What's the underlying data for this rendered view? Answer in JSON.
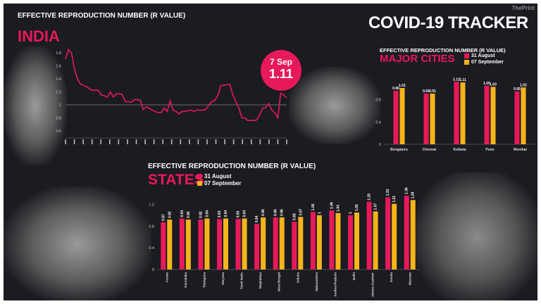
{
  "header": {
    "title": "COVID-19 TRACKER",
    "watermark": "ThePrint"
  },
  "colors": {
    "background": "#1b1b22",
    "series_a": "#e8195a",
    "series_b": "#f5b41a",
    "accent": "#e8195a"
  },
  "india": {
    "subtitle": "EFFECTIVE REPRODUCTION NUMBER (R VALUE)",
    "title": "INDIA",
    "callout_date": "7 Sep",
    "callout_value": "1.11"
  },
  "cities": {
    "subtitle": "EFFECTIVE REPRODUCTION NUMBER (R VALUE)",
    "title": "MAJOR CITIES"
  },
  "states": {
    "subtitle": "EFFECTIVE REPRODUCTION NUMBER (R VALUE)",
    "title": "STATES"
  },
  "images": [
    "health-worker-ppe-photo",
    "swab-test-photo",
    "hospital-ward-photo",
    "ambulance-workers-photo"
  ],
  "chart_data": [
    {
      "type": "line",
      "yticks": [
        "1.8",
        "1.6",
        "1.4",
        "1.2",
        "1",
        "0.8",
        "0.6"
      ],
      "ylim": [
        0.6,
        1.8
      ],
      "reference_line": 1,
      "values": [
        1.7,
        1.85,
        1.8,
        1.55,
        1.4,
        1.32,
        1.3,
        1.28,
        1.25,
        1.22,
        1.23,
        1.22,
        1.15,
        1.14,
        1.12,
        1.2,
        1.12,
        1.17,
        1.17,
        1.16,
        1.05,
        1.05,
        1.04,
        1.08,
        1.08,
        1.07,
        0.93,
        0.97,
        0.95,
        0.92,
        0.9,
        0.88,
        0.88,
        0.95,
        0.9,
        1.06,
        0.92,
        0.9,
        0.86,
        0.9,
        0.9,
        0.91,
        0.92,
        0.9,
        0.92,
        0.92,
        0.92,
        0.93,
        1.0,
        1.05,
        1.07,
        1.15,
        1.3,
        1.3,
        1.31,
        1.31,
        1.15,
        1.05,
        0.95,
        0.8,
        0.8,
        0.76,
        0.76,
        0.76,
        0.77,
        0.85,
        0.95,
        0.96,
        1.02,
        0.92,
        0.88,
        0.8,
        1.18,
        1.15,
        1.11
      ]
    },
    {
      "type": "bar",
      "yticks": [
        "0",
        "0.4",
        "0.8"
      ],
      "ylim": [
        0,
        1.2
      ],
      "categories": [
        "Bengaluru",
        "Chennai",
        "Kolkata",
        "Pune",
        "Mumbai"
      ],
      "series": [
        {
          "name": "31 August",
          "values": [
            0.96,
            0.91,
            1.12,
            1.05,
            0.95
          ],
          "labels": [
            "0.96",
            "0.91",
            "1.12",
            "1.05",
            "0.95"
          ]
        },
        {
          "name": "07 September",
          "values": [
            1.01,
            0.91,
            1.11,
            1.03,
            1.02
          ],
          "labels": [
            "1.01",
            "0.91",
            "1.11",
            "1.03",
            "1.02"
          ]
        }
      ]
    },
    {
      "type": "bar",
      "yticks": [
        "0",
        "0.4",
        "0.8",
        "1.2"
      ],
      "ylim": [
        0,
        1.4
      ],
      "categories": [
        "Assam",
        "Karnataka",
        "Telangana",
        "Haryana",
        "Tamil Nadu",
        "Meghalaya",
        "West Bengal",
        "Odisha",
        "Maharashtra",
        "Andhra Pradesh",
        "Delhi",
        "Jammu Kashmir",
        "Kerala",
        "Mizoram"
      ],
      "series": [
        {
          "name": "31 August",
          "values": [
            0.87,
            0.94,
            0.92,
            0.93,
            0.93,
            0.84,
            0.96,
            0.88,
            1.06,
            1.09,
            1,
            1.25,
            1.33,
            1.36
          ],
          "labels": [
            "0.87",
            "0.94",
            "0.92",
            "0.93",
            "0.93",
            "0.84",
            "0.96",
            "0.88",
            "1.06",
            "1.09",
            "1",
            "1.25",
            "1.33",
            "1.36"
          ]
        },
        {
          "name": "07 September",
          "values": [
            0.92,
            0.92,
            0.94,
            0.94,
            0.94,
            0.96,
            0.96,
            0.97,
            1,
            1.04,
            1.05,
            1.07,
            1.21,
            1.28
          ],
          "labels": [
            "0.92",
            "0.92",
            "0.94",
            "0.94",
            "0.94",
            "0.96",
            "0.96",
            "0.97",
            "1",
            "1.04",
            "1.05",
            "1.07",
            "1.21",
            "1.28"
          ]
        }
      ]
    }
  ]
}
